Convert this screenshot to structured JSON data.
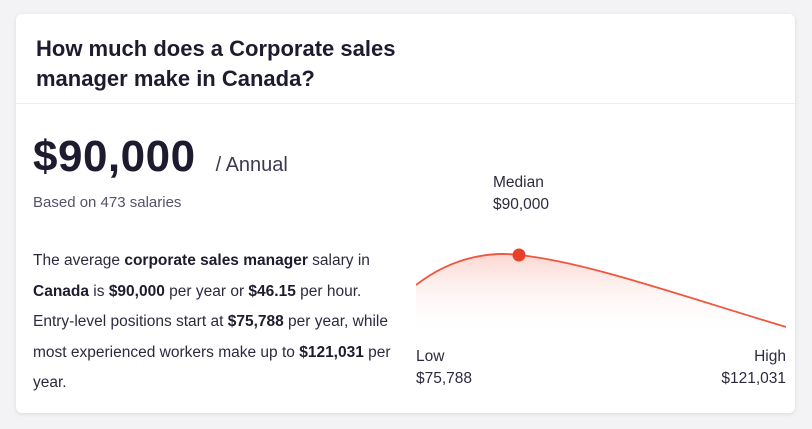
{
  "header": {
    "title": "How much does a Corporate sales manager make in Canada?"
  },
  "summary": {
    "amount": "$90,000",
    "period": "/ Annual",
    "based_on": "Based on 473 salaries"
  },
  "description": {
    "t1": "The average ",
    "b1": "corporate sales manager",
    "t2": " salary in ",
    "b2": "Canada",
    "t3": " is ",
    "b3": "$90,000",
    "t4": " per year or ",
    "b4": "$46.15",
    "t5": " per hour. Entry-level positions start at ",
    "b5": "$75,788",
    "t6": " per year, while most experienced workers make up to ",
    "b6": "$121,031",
    "t7": " per year."
  },
  "distribution": {
    "median_label": "Median",
    "median_value": "$90,000",
    "low_label": "Low",
    "low_value": "$75,788",
    "high_label": "High",
    "high_value": "$121,031",
    "curve_color": "#f0553d",
    "fill_color": "#fde5e1"
  }
}
